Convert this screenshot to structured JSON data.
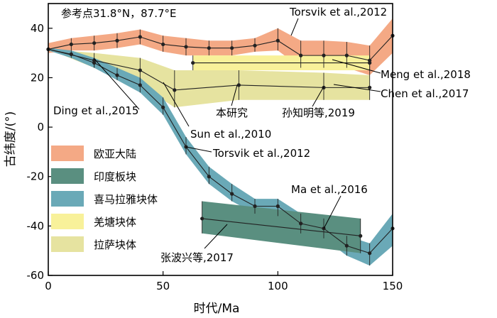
{
  "chart_data": {
    "type": "line",
    "xlabel": "时代/Ma",
    "ylabel": "古纬度/(°)",
    "xlim": [
      0,
      150
    ],
    "ylim": [
      -60,
      50
    ],
    "xticks": [
      0,
      50,
      100,
      150
    ],
    "yticks": [
      40,
      20,
      0,
      -20,
      -40,
      -60
    ],
    "ref_point": "参考点31.8°N，87.7°E",
    "legend": [
      {
        "label": "欧亚大陆",
        "color": "#f4a985"
      },
      {
        "label": "印度板块",
        "color": "#5a8f80"
      },
      {
        "label": "喜马拉雅块体",
        "color": "#6aa9b7"
      },
      {
        "label": "羌塘块体",
        "color": "#f8f19a"
      },
      {
        "label": "拉萨块体",
        "color": "#e6e3a0"
      }
    ],
    "series": [
      {
        "name": "欧亚大陆",
        "bandColor": "#f4a985",
        "x": [
          0,
          10,
          20,
          30,
          40,
          50,
          60,
          70,
          80,
          90,
          100,
          110,
          120,
          130,
          140,
          150
        ],
        "y": [
          31.5,
          33.5,
          34,
          35,
          36.5,
          33.5,
          32.5,
          32,
          32,
          33,
          35,
          29,
          29,
          29,
          27,
          37
        ],
        "upper": [
          34,
          36,
          37,
          38,
          39.5,
          37,
          36,
          35,
          35,
          36,
          40,
          35,
          35,
          34.5,
          33,
          44
        ],
        "lower": [
          30,
          31,
          31,
          32,
          33.5,
          30.5,
          29,
          29,
          29,
          30.5,
          31,
          24,
          24,
          24,
          21,
          30
        ]
      },
      {
        "name": "羌塘块体",
        "bandColor": "#f8f19a",
        "x": [
          63,
          140
        ],
        "y": [
          26,
          26
        ],
        "upper": [
          29,
          29
        ],
        "lower": [
          23,
          23
        ]
      },
      {
        "name": "拉萨块体",
        "bandColor": "#e6e3a0",
        "x": [
          0,
          20,
          40,
          55,
          83,
          120,
          140
        ],
        "y": [
          31.5,
          27,
          23,
          15,
          17,
          16,
          16
        ],
        "upper": [
          31.5,
          30,
          28,
          23,
          23,
          22,
          21
        ],
        "lower": [
          31.5,
          24,
          17,
          8,
          11,
          11,
          11
        ]
      },
      {
        "name": "喜马拉雅块体",
        "bandColor": "#6aa9b7",
        "x": [
          0,
          10,
          20,
          30,
          40,
          50,
          60,
          70,
          80,
          90,
          100,
          110,
          120,
          130,
          140,
          150
        ],
        "y": [
          31.5,
          29.5,
          26,
          21,
          17,
          8,
          -8,
          -20,
          -27,
          -32,
          -32,
          -39,
          -41,
          -48,
          -51,
          -41
        ],
        "upper": [
          32,
          31,
          28,
          24,
          20,
          12,
          -4,
          -16,
          -23,
          -29,
          -29,
          -35,
          -37,
          -44,
          -47,
          -35
        ],
        "lower": [
          31,
          28,
          24,
          19,
          14,
          5,
          -11,
          -23,
          -30,
          -35,
          -36,
          -43,
          -45,
          -52,
          -56,
          -48
        ]
      },
      {
        "name": "印度板块",
        "bandColor": "#5a8f80",
        "x": [
          67,
          136
        ],
        "y": [
          -37,
          -44
        ],
        "upper": [
          -30,
          -37
        ],
        "lower": [
          -43,
          -51
        ]
      }
    ],
    "annotations": [
      {
        "text": "Torsvik et al.,2012"
      },
      {
        "text": "Meng et al.,2018"
      },
      {
        "text": "Chen et al.,2017"
      },
      {
        "text": "Ding et al.,2015"
      },
      {
        "text": "本研究"
      },
      {
        "text": "孙知明等,2019"
      },
      {
        "text": "Sun et al.,2010"
      },
      {
        "text": "Torsvik et al.,2012"
      },
      {
        "text": "Ma et al.,2016"
      },
      {
        "text": "张波兴等,2017"
      }
    ]
  }
}
